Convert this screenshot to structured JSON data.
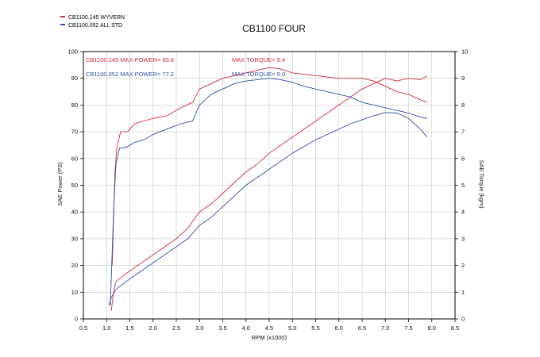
{
  "chart_data": {
    "type": "line",
    "title": "CB1100 FOUR",
    "xlabel": "RPM (x1000)",
    "ylabel_left": "SAE Power (PS)",
    "ylabel_right": "SAE Torque (kgm)",
    "xlim": [
      0.5,
      8.5
    ],
    "ylim_left": [
      0,
      100
    ],
    "ylim_right": [
      0,
      10
    ],
    "x_ticks": [
      "0.5",
      "1.0",
      "1.5",
      "2.0",
      "2.5",
      "3.0",
      "3.5",
      "4.0",
      "4.5",
      "5.0",
      "5.5",
      "6.0",
      "6.5",
      "7.0",
      "7.5",
      "8.0",
      "8.5"
    ],
    "y_ticks_left": [
      "0",
      "10",
      "20",
      "30",
      "40",
      "50",
      "60",
      "70",
      "80",
      "90",
      "100"
    ],
    "y_ticks_right": [
      "0",
      "1",
      "2",
      "3",
      "4",
      "5",
      "6",
      "7",
      "8",
      "9",
      "10"
    ],
    "grid": true,
    "legend_position": "top-left",
    "legend": [
      {
        "label": "CB1100.145  WYVERN",
        "color": "#d62a3a"
      },
      {
        "label": "CB1100.052  ALL STD",
        "color": "#2e4fa6"
      }
    ],
    "annotations": [
      {
        "text": "CB1100.145  MAX POWER= 90.8",
        "color": "#d62a3a"
      },
      {
        "text": "MAX TORQUE= 9.4",
        "color": "#d62a3a"
      },
      {
        "text": "CB1100.052  MAX POWER= 77.2",
        "color": "#2e4fa6"
      },
      {
        "text": "MAX TORQUE= 9.0",
        "color": "#2e4fa6"
      }
    ],
    "series": [
      {
        "name": "CB1100.145 WYVERN",
        "color": "#d62a3a",
        "power": [
          [
            1.1,
            3
          ],
          [
            1.15,
            10
          ],
          [
            1.2,
            14
          ],
          [
            1.35,
            16
          ],
          [
            1.5,
            18
          ],
          [
            1.75,
            21
          ],
          [
            2.0,
            24
          ],
          [
            2.25,
            27
          ],
          [
            2.5,
            30
          ],
          [
            2.75,
            34
          ],
          [
            3.0,
            40
          ],
          [
            3.25,
            43
          ],
          [
            3.5,
            47
          ],
          [
            3.75,
            51
          ],
          [
            4.0,
            55
          ],
          [
            4.25,
            58
          ],
          [
            4.5,
            62
          ],
          [
            4.75,
            65
          ],
          [
            5.0,
            68
          ],
          [
            5.25,
            71
          ],
          [
            5.5,
            74
          ],
          [
            5.75,
            77
          ],
          [
            6.0,
            80
          ],
          [
            6.25,
            83
          ],
          [
            6.5,
            86
          ],
          [
            6.75,
            88
          ],
          [
            7.0,
            90
          ],
          [
            7.25,
            89
          ],
          [
            7.5,
            90
          ],
          [
            7.75,
            89.5
          ],
          [
            7.9,
            90.8
          ]
        ],
        "torque": [
          [
            1.12,
            2.0
          ],
          [
            1.18,
            5.5
          ],
          [
            1.22,
            6.4
          ],
          [
            1.3,
            7.0
          ],
          [
            1.45,
            7.0
          ],
          [
            1.6,
            7.3
          ],
          [
            1.8,
            7.4
          ],
          [
            2.0,
            7.5
          ],
          [
            2.3,
            7.6
          ],
          [
            2.6,
            7.9
          ],
          [
            2.85,
            8.1
          ],
          [
            3.0,
            8.6
          ],
          [
            3.25,
            8.8
          ],
          [
            3.5,
            9.0
          ],
          [
            3.75,
            9.1
          ],
          [
            4.0,
            9.2
          ],
          [
            4.25,
            9.3
          ],
          [
            4.5,
            9.4
          ],
          [
            4.75,
            9.35
          ],
          [
            5.0,
            9.2
          ],
          [
            5.25,
            9.15
          ],
          [
            5.5,
            9.1
          ],
          [
            5.75,
            9.05
          ],
          [
            6.0,
            9.0
          ],
          [
            6.25,
            9.0
          ],
          [
            6.5,
            9.0
          ],
          [
            6.75,
            8.9
          ],
          [
            7.0,
            8.7
          ],
          [
            7.25,
            8.5
          ],
          [
            7.5,
            8.4
          ],
          [
            7.75,
            8.2
          ],
          [
            7.9,
            8.1
          ]
        ]
      },
      {
        "name": "CB1100.052 ALL STD",
        "color": "#2e4fa6",
        "power": [
          [
            1.05,
            5
          ],
          [
            1.1,
            8
          ],
          [
            1.2,
            11
          ],
          [
            1.35,
            13
          ],
          [
            1.5,
            15
          ],
          [
            1.75,
            18
          ],
          [
            2.0,
            21
          ],
          [
            2.25,
            24
          ],
          [
            2.5,
            27
          ],
          [
            2.75,
            30
          ],
          [
            3.0,
            35
          ],
          [
            3.25,
            38
          ],
          [
            3.5,
            42
          ],
          [
            3.75,
            46
          ],
          [
            4.0,
            50
          ],
          [
            4.25,
            53
          ],
          [
            4.5,
            56
          ],
          [
            4.75,
            59
          ],
          [
            5.0,
            62
          ],
          [
            5.25,
            64.5
          ],
          [
            5.5,
            67
          ],
          [
            5.75,
            69
          ],
          [
            6.0,
            71
          ],
          [
            6.25,
            73
          ],
          [
            6.5,
            74.5
          ],
          [
            6.75,
            76
          ],
          [
            7.0,
            77.2
          ],
          [
            7.25,
            77
          ],
          [
            7.5,
            75
          ],
          [
            7.75,
            71
          ],
          [
            7.9,
            68
          ]
        ],
        "torque": [
          [
            1.08,
            0.5
          ],
          [
            1.15,
            4.0
          ],
          [
            1.2,
            5.8
          ],
          [
            1.28,
            6.4
          ],
          [
            1.4,
            6.4
          ],
          [
            1.6,
            6.6
          ],
          [
            1.8,
            6.7
          ],
          [
            2.0,
            6.9
          ],
          [
            2.3,
            7.1
          ],
          [
            2.6,
            7.3
          ],
          [
            2.85,
            7.4
          ],
          [
            3.0,
            8.0
          ],
          [
            3.25,
            8.4
          ],
          [
            3.5,
            8.6
          ],
          [
            3.75,
            8.8
          ],
          [
            4.0,
            8.9
          ],
          [
            4.25,
            8.95
          ],
          [
            4.5,
            9.0
          ],
          [
            4.75,
            8.95
          ],
          [
            5.0,
            8.85
          ],
          [
            5.25,
            8.7
          ],
          [
            5.5,
            8.6
          ],
          [
            5.75,
            8.5
          ],
          [
            6.0,
            8.4
          ],
          [
            6.25,
            8.3
          ],
          [
            6.5,
            8.1
          ],
          [
            6.75,
            8.0
          ],
          [
            7.0,
            7.9
          ],
          [
            7.25,
            7.8
          ],
          [
            7.5,
            7.7
          ],
          [
            7.75,
            7.55
          ],
          [
            7.9,
            7.5
          ]
        ]
      }
    ]
  }
}
